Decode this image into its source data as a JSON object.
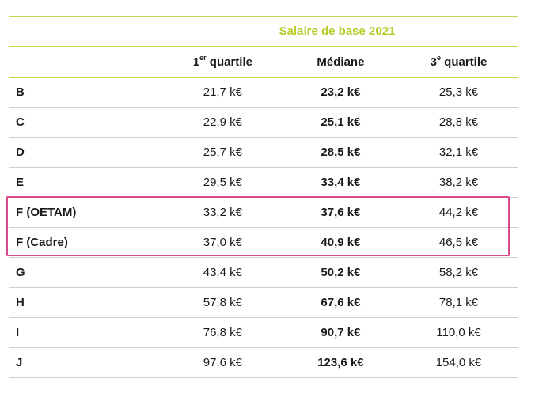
{
  "header": {
    "group_title": "Salaire de base 2021",
    "col1_main": "1",
    "col1_sup": "er",
    "col1_rest": " quartile",
    "col2": "Médiane",
    "col3_main": "3",
    "col3_sup": "e",
    "col3_rest": " quartile"
  },
  "rows": [
    {
      "label": "B",
      "q1": "21,7 k€",
      "median": "23,2 k€",
      "q3": "25,3 k€"
    },
    {
      "label": "C",
      "q1": "22,9 k€",
      "median": "25,1 k€",
      "q3": "28,8 k€"
    },
    {
      "label": "D",
      "q1": "25,7 k€",
      "median": "28,5 k€",
      "q3": "32,1 k€"
    },
    {
      "label": "E",
      "q1": "29,5 k€",
      "median": "33,4 k€",
      "q3": "38,2 k€"
    },
    {
      "label": "F (OETAM)",
      "q1": "33,2 k€",
      "median": "37,6 k€",
      "q3": "44,2 k€"
    },
    {
      "label": "F (Cadre)",
      "q1": "37,0 k€",
      "median": "40,9 k€",
      "q3": "46,5 k€"
    },
    {
      "label": "G",
      "q1": "43,4 k€",
      "median": "50,2 k€",
      "q3": "58,2 k€"
    },
    {
      "label": "H",
      "q1": "57,8 k€",
      "median": "67,6 k€",
      "q3": "78,1 k€"
    },
    {
      "label": "I",
      "q1": "76,8 k€",
      "median": "90,7 k€",
      "q3": "110,0 k€"
    },
    {
      "label": "J",
      "q1": "97,6 k€",
      "median": "123,6 k€",
      "q3": "154,0 k€"
    }
  ],
  "colors": {
    "accent": "#b9cb2a",
    "rule": "#c5d64f",
    "highlight": "#d9468a"
  }
}
